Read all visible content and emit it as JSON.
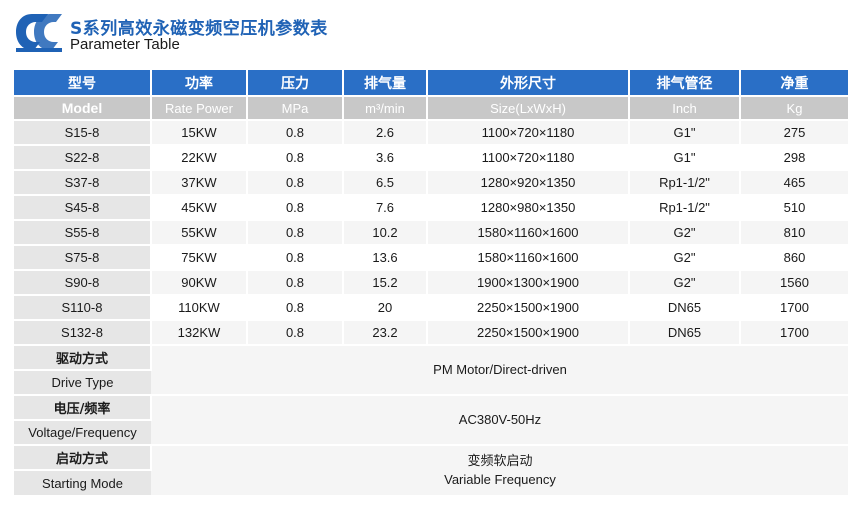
{
  "header": {
    "title_cn": "S系列高效永磁变频空压机参数表",
    "title_en": "Parameter Table",
    "logo_color": "#1f62b5"
  },
  "columns": {
    "cn": [
      "型号",
      "功率",
      "压力",
      "排气量",
      "外形尺寸",
      "排气管径",
      "净重"
    ],
    "en": [
      "Model",
      "Rate Power",
      "MPa",
      "m³/min",
      "Size(LxWxH)",
      "Inch",
      "Kg"
    ]
  },
  "rows": [
    [
      "S15-8",
      "15KW",
      "0.8",
      "2.6",
      "1100×720×1180",
      "G1\"",
      "275"
    ],
    [
      "S22-8",
      "22KW",
      "0.8",
      "3.6",
      "1100×720×1180",
      "G1\"",
      "298"
    ],
    [
      "S37-8",
      "37KW",
      "0.8",
      "6.5",
      "1280×920×1350",
      "Rp1-1/2\"",
      "465"
    ],
    [
      "S45-8",
      "45KW",
      "0.8",
      "7.6",
      "1280×980×1350",
      "Rp1-1/2\"",
      "510"
    ],
    [
      "S55-8",
      "55KW",
      "0.8",
      "10.2",
      "1580×1160×1600",
      "G2\"",
      "810"
    ],
    [
      "S75-8",
      "75KW",
      "0.8",
      "13.6",
      "1580×1160×1600",
      "G2\"",
      "860"
    ],
    [
      "S90-8",
      "90KW",
      "0.8",
      "15.2",
      "1900×1300×1900",
      "G2\"",
      "1560"
    ],
    [
      "S110-8",
      "110KW",
      "0.8",
      "20",
      "2250×1500×1900",
      "DN65",
      "1700"
    ],
    [
      "S132-8",
      "132KW",
      "0.8",
      "23.2",
      "2250×1500×1900",
      "DN65",
      "1700"
    ]
  ],
  "specs": {
    "drive": {
      "label_cn": "驱动方式",
      "label_en": "Drive Type",
      "value": "PM Motor/Direct-driven"
    },
    "voltage": {
      "label_cn": "电压/频率",
      "label_en": "Voltage/Frequency",
      "value": "AC380V-50Hz"
    },
    "starting": {
      "label_cn": "启动方式",
      "label_en": "Starting Mode",
      "value_cn": "变频软启动",
      "value_en": "Variable Frequency"
    }
  },
  "colors": {
    "header_blue": "#2a6fc6",
    "subheader_grey": "#c8c8c8"
  }
}
